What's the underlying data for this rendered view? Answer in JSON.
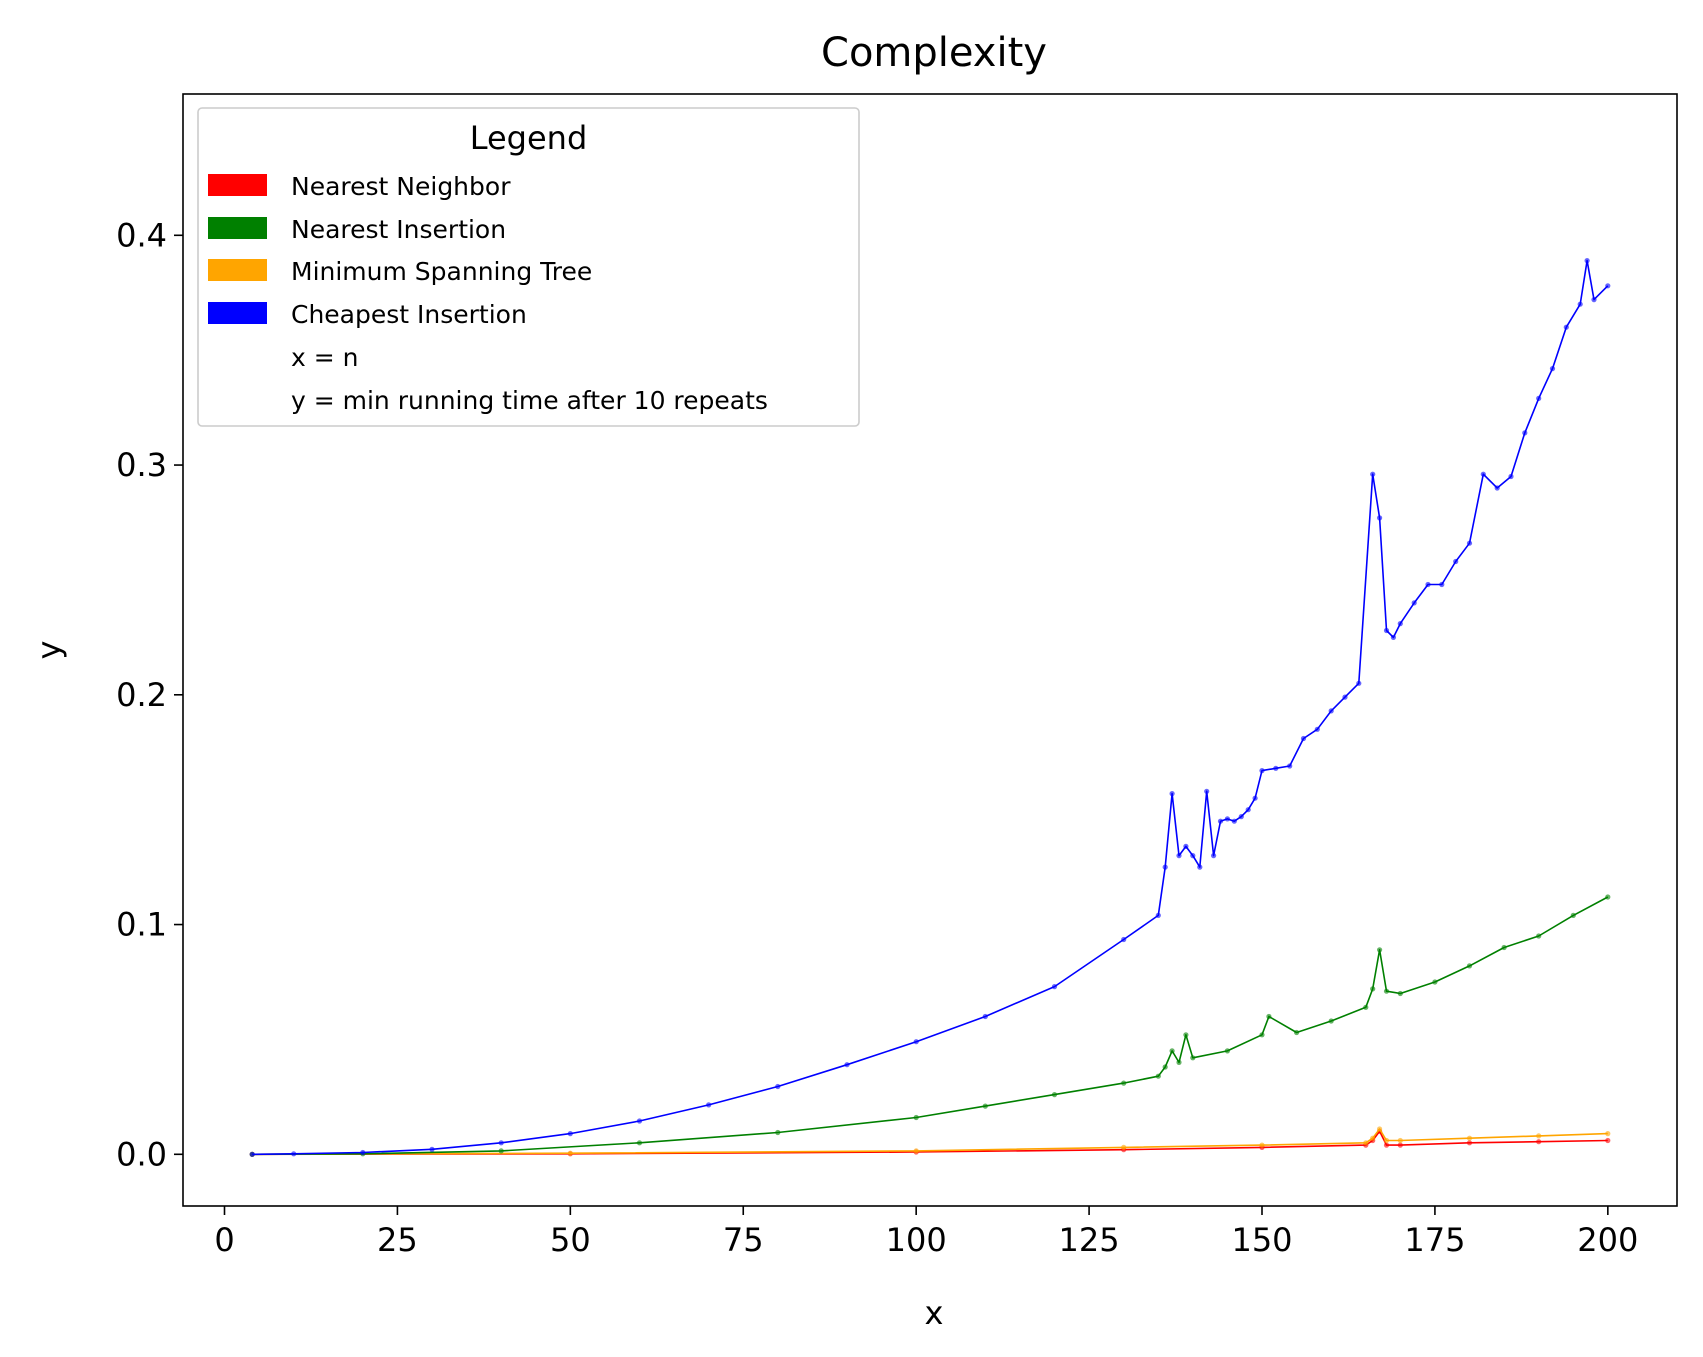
{
  "chart_data": {
    "type": "line",
    "title": "Complexity",
    "xlabel": "x",
    "ylabel": "y",
    "xlim": [
      -6,
      210
    ],
    "ylim": [
      -0.0225,
      0.4615
    ],
    "xticks": [
      0,
      25,
      50,
      75,
      100,
      125,
      150,
      175,
      200
    ],
    "xtick_labels": [
      "0",
      "25",
      "50",
      "75",
      "100",
      "125",
      "150",
      "175",
      "200"
    ],
    "yticks": [
      0.0,
      0.1,
      0.2,
      0.3,
      0.4
    ],
    "ytick_labels": [
      "0.0",
      "0.1",
      "0.2",
      "0.3",
      "0.4"
    ],
    "grid": false,
    "legend": {
      "title": "Legend",
      "position": "top-left",
      "entries": [
        {
          "label": "Nearest Neighbor",
          "color": "#ff0000"
        },
        {
          "label": "Nearest Insertion",
          "color": "#008000"
        },
        {
          "label": "Minimum Spanning Tree",
          "color": "#ffa500"
        },
        {
          "label": "Cheapest Insertion",
          "color": "#0000ff"
        }
      ],
      "notes": [
        "x = n",
        "y = min running time after 10 repeats"
      ]
    },
    "series": [
      {
        "name": "Cheapest Insertion",
        "color": "#0000ff",
        "x": [
          4,
          10,
          20,
          30,
          40,
          50,
          60,
          70,
          80,
          90,
          100,
          110,
          120,
          130,
          135,
          136,
          137,
          138,
          139,
          140,
          141,
          142,
          143,
          144,
          145,
          146,
          147,
          148,
          149,
          150,
          152,
          154,
          156,
          158,
          160,
          162,
          164,
          166,
          167,
          168,
          169,
          170,
          172,
          174,
          176,
          178,
          180,
          182,
          184,
          186,
          188,
          190,
          192,
          194,
          196,
          197,
          198,
          200
        ],
        "y": [
          0.0,
          0.0002,
          0.0008,
          0.0022,
          0.005,
          0.009,
          0.0145,
          0.0215,
          0.0295,
          0.039,
          0.049,
          0.06,
          0.073,
          0.0935,
          0.104,
          0.125,
          0.157,
          0.13,
          0.134,
          0.13,
          0.125,
          0.158,
          0.13,
          0.145,
          0.146,
          0.145,
          0.147,
          0.15,
          0.155,
          0.167,
          0.168,
          0.169,
          0.181,
          0.185,
          0.193,
          0.199,
          0.205,
          0.296,
          0.277,
          0.228,
          0.225,
          0.231,
          0.24,
          0.248,
          0.248,
          0.258,
          0.266,
          0.296,
          0.29,
          0.295,
          0.314,
          0.329,
          0.342,
          0.36,
          0.37,
          0.389,
          0.372,
          0.378
        ]
      },
      {
        "name": "Nearest Insertion",
        "color": "#008000",
        "x": [
          4,
          20,
          40,
          60,
          80,
          100,
          110,
          120,
          130,
          135,
          136,
          137,
          138,
          139,
          140,
          145,
          150,
          151,
          155,
          160,
          165,
          166,
          167,
          168,
          170,
          175,
          180,
          185,
          190,
          195,
          200
        ],
        "y": [
          0.0,
          0.0002,
          0.0015,
          0.005,
          0.0095,
          0.016,
          0.021,
          0.026,
          0.031,
          0.034,
          0.038,
          0.045,
          0.04,
          0.052,
          0.042,
          0.045,
          0.052,
          0.06,
          0.053,
          0.058,
          0.064,
          0.072,
          0.089,
          0.071,
          0.07,
          0.075,
          0.082,
          0.09,
          0.095,
          0.104,
          0.112
        ]
      },
      {
        "name": "Minimum Spanning Tree",
        "color": "#ffa500",
        "x": [
          4,
          50,
          100,
          130,
          150,
          165,
          166,
          167,
          168,
          170,
          180,
          190,
          200
        ],
        "y": [
          0.0,
          0.0005,
          0.0015,
          0.003,
          0.004,
          0.005,
          0.007,
          0.011,
          0.006,
          0.006,
          0.007,
          0.008,
          0.009
        ]
      },
      {
        "name": "Nearest Neighbor",
        "color": "#ff0000",
        "x": [
          4,
          50,
          100,
          130,
          150,
          165,
          166,
          167,
          168,
          170,
          180,
          190,
          200
        ],
        "y": [
          0.0,
          0.0002,
          0.001,
          0.002,
          0.003,
          0.004,
          0.006,
          0.01,
          0.004,
          0.004,
          0.005,
          0.0055,
          0.006
        ]
      }
    ]
  }
}
